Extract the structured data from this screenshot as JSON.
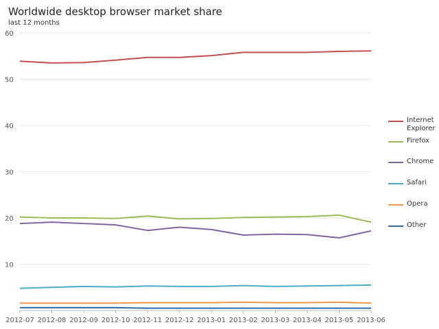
{
  "chart_data": {
    "type": "line",
    "title": "Worldwide desktop browser market share",
    "subtitle": "last 12 months",
    "xlabel": "",
    "ylabel": "",
    "x": [
      "2012-07",
      "2012-08",
      "2012-09",
      "2012-10",
      "2012-11",
      "2012-12",
      "2013-01",
      "2013-02",
      "2013-03",
      "2013-04",
      "2013-05",
      "2013-06"
    ],
    "ylim": [
      0,
      60
    ],
    "yticks": [
      10,
      20,
      30,
      40,
      50,
      60
    ],
    "grid": true,
    "legend_position": "right",
    "series": [
      {
        "name": "Internet Explorer",
        "color": "#c0504d",
        "values": [
          53.9,
          53.5,
          53.6,
          54.1,
          54.7,
          54.7,
          55.1,
          55.8,
          55.8,
          55.8,
          56.0,
          56.1
        ]
      },
      {
        "name": "Firefox",
        "color": "#9bbb59",
        "values": [
          20.2,
          20.0,
          20.0,
          19.9,
          20.4,
          19.8,
          19.9,
          20.1,
          20.2,
          20.3,
          20.6,
          19.1
        ]
      },
      {
        "name": "Chrome",
        "color": "#8064a2",
        "values": [
          18.8,
          19.1,
          18.8,
          18.5,
          17.3,
          18.0,
          17.5,
          16.3,
          16.5,
          16.4,
          15.7,
          17.2
        ]
      },
      {
        "name": "Safari",
        "color": "#4bacc6",
        "values": [
          4.8,
          5.0,
          5.2,
          5.1,
          5.3,
          5.2,
          5.2,
          5.4,
          5.2,
          5.3,
          5.4,
          5.5
        ]
      },
      {
        "name": "Opera",
        "color": "#f79646",
        "values": [
          1.6,
          1.6,
          1.6,
          1.6,
          1.7,
          1.7,
          1.7,
          1.8,
          1.7,
          1.7,
          1.8,
          1.6
        ]
      },
      {
        "name": "Other",
        "color": "#2c6aa8",
        "values": [
          0.6,
          0.6,
          0.6,
          0.6,
          0.5,
          0.5,
          0.5,
          0.5,
          0.5,
          0.5,
          0.5,
          0.5
        ]
      }
    ]
  }
}
